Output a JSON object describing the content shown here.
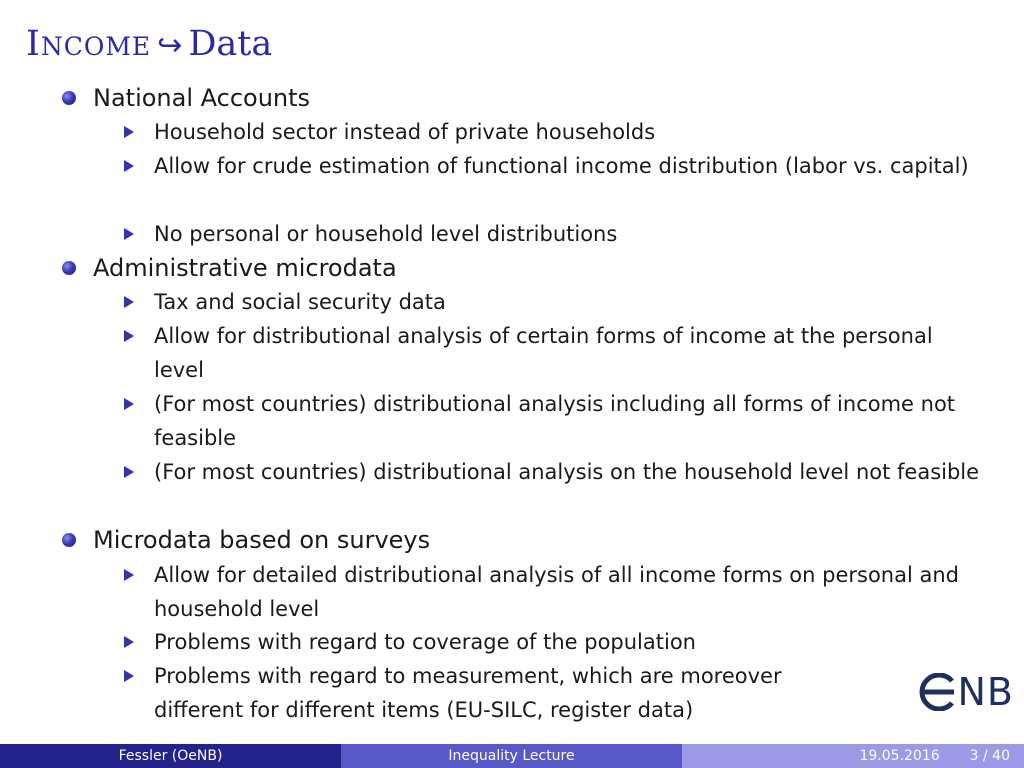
{
  "title": {
    "part1": "Income",
    "arrow": "↪",
    "part2": "Data"
  },
  "sections": [
    {
      "heading": "National Accounts",
      "items": [
        "Household sector instead of private households",
        "Allow for crude estimation of functional income distribution (labor vs. capital)",
        "No personal or household level distributions"
      ]
    },
    {
      "heading": "Administrative microdata",
      "items": [
        "Tax and social security data",
        "Allow for distributional analysis of certain forms of income at the personal level",
        "(For most countries) distributional analysis including all forms of income not feasible",
        "(For most countries) distributional analysis on the household level not feasible"
      ]
    },
    {
      "heading": "Microdata based on surveys",
      "items": [
        "Allow for detailed distributional analysis of all income forms on personal and household level",
        "Problems with regard to coverage of the population",
        "Problems with regard to measurement, which are moreover different for different items (EU-SILC, register data)"
      ]
    }
  ],
  "logo": {
    "text": "NB"
  },
  "footer": {
    "author": "Fessler  (OeNB)",
    "title": "Inequality Lecture",
    "date": "19.05.2016",
    "page": "3 / 40"
  },
  "colors": {
    "title": "#2a2aa6",
    "bullet": "#3a3ab8",
    "footer_left": "#22228a",
    "footer_mid": "#5858c8",
    "footer_right": "#9a9ae6",
    "logo": "#1f2f5f"
  }
}
